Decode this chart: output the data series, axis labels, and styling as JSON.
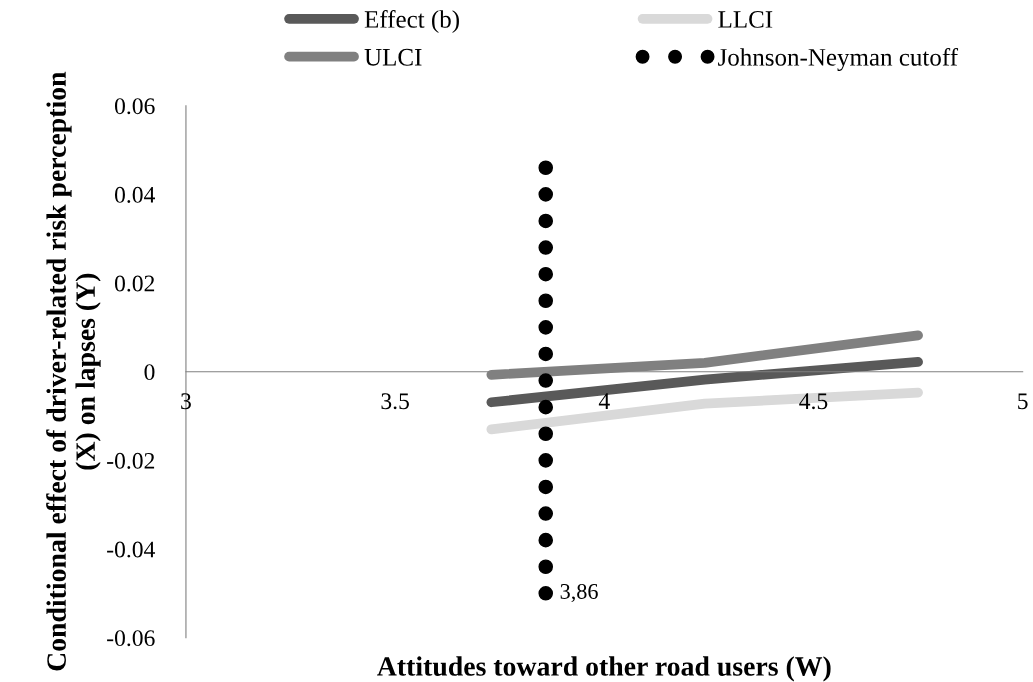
{
  "chart_data": {
    "type": "line",
    "xlabel": "Attitudes toward other road users (W)",
    "ylabel": "Conditional effect of driver-related risk perception (X) on lapses (Y)",
    "series": [
      {
        "name": "Effect (b)",
        "color": "#595959",
        "x": [
          3.73,
          4.24,
          4.75
        ],
        "values": [
          -0.0069,
          -0.0018,
          0.0022
        ]
      },
      {
        "name": "LLCI",
        "color": "#d9d9d9",
        "x": [
          3.73,
          4.24,
          4.75
        ],
        "values": [
          -0.013,
          -0.0072,
          -0.0047
        ]
      },
      {
        "name": "ULCI",
        "color": "#808080",
        "x": [
          3.73,
          4.24,
          4.75
        ],
        "values": [
          -0.0007,
          0.002,
          0.0082
        ]
      },
      {
        "name": "Johnson-Neyman cutoff",
        "type": "scatter",
        "color": "#000000",
        "marker": "circle",
        "x": [
          3.86,
          3.86,
          3.86,
          3.86,
          3.86,
          3.86,
          3.86,
          3.86,
          3.86,
          3.86,
          3.86,
          3.86,
          3.86,
          3.86,
          3.86,
          3.86,
          3.86
        ],
        "values": [
          0.046,
          0.04,
          0.034,
          0.028,
          0.022,
          0.016,
          0.01,
          0.004,
          -0.002,
          -0.008,
          -0.014,
          -0.02,
          -0.026,
          -0.032,
          -0.038,
          -0.044,
          -0.05
        ]
      }
    ],
    "annotations": [
      {
        "text": "3,86",
        "x": 3.86,
        "y": -0.05
      }
    ],
    "xlim": [
      3,
      5
    ],
    "xticks": [
      3,
      3.5,
      4,
      4.5,
      5
    ],
    "ylim": [
      -0.06,
      0.06
    ],
    "yticks": [
      -0.06,
      -0.04,
      -0.02,
      0,
      0.02,
      0.04,
      0.06
    ],
    "grid": false,
    "legend": "top",
    "marker": "none",
    "line_style": "solid"
  }
}
